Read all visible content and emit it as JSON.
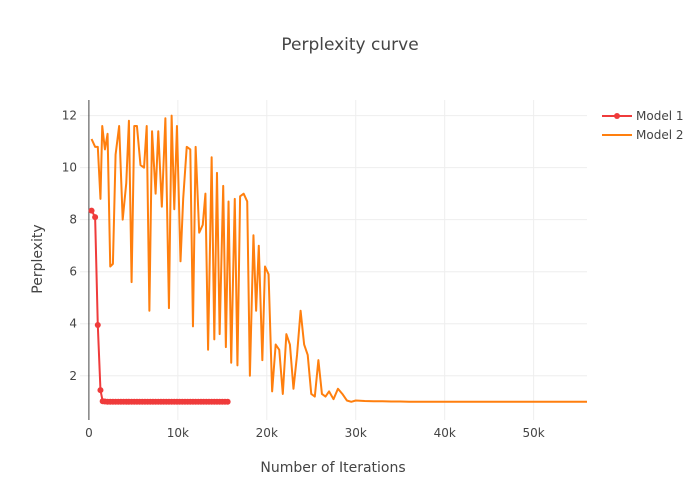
{
  "chart_data": {
    "type": "line",
    "title": "Perplexity curve",
    "xlabel": "Number of Iterations",
    "ylabel": "Perplexity",
    "xlim": [
      -1000,
      56000
    ],
    "ylim": [
      0.3,
      12.6
    ],
    "x_ticks": [
      0,
      10000,
      20000,
      30000,
      40000,
      50000
    ],
    "x_tick_labels": [
      "0",
      "10k",
      "20k",
      "30k",
      "40k",
      "50k"
    ],
    "y_ticks": [
      2,
      4,
      6,
      8,
      10,
      12
    ],
    "y_tick_labels": [
      "2",
      "4",
      "6",
      "8",
      "10",
      "12"
    ],
    "grid": true,
    "legend_position": "top-right",
    "series": [
      {
        "name": "Model 1",
        "color": "#ef3b3b",
        "mode": "lines+markers",
        "x": [
          300,
          700,
          1000,
          1300,
          1550,
          1800,
          2100,
          2400,
          2700,
          3000,
          3300,
          3600,
          3900,
          4200,
          4500,
          4800,
          5100,
          5400,
          5700,
          6000,
          6300,
          6600,
          6900,
          7200,
          7500,
          7800,
          8100,
          8400,
          8700,
          9000,
          9300,
          9600,
          9900,
          10200,
          10500,
          10800,
          11100,
          11400,
          11700,
          12000,
          12300,
          12600,
          12900,
          13200,
          13500,
          13800,
          14100,
          14400,
          14700,
          15000,
          15300,
          15600
        ],
        "y": [
          8.35,
          8.1,
          3.95,
          1.45,
          1.02,
          1.01,
          1.0,
          1.0,
          1.0,
          1.0,
          1.0,
          1.0,
          1.0,
          1.0,
          1.0,
          1.0,
          1.0,
          1.0,
          1.0,
          1.0,
          1.0,
          1.0,
          1.0,
          1.0,
          1.0,
          1.0,
          1.0,
          1.0,
          1.0,
          1.0,
          1.0,
          1.0,
          1.0,
          1.0,
          1.0,
          1.0,
          1.0,
          1.0,
          1.0,
          1.0,
          1.0,
          1.0,
          1.0,
          1.0,
          1.0,
          1.0,
          1.0,
          1.0,
          1.0,
          1.0,
          1.0,
          1.0
        ]
      },
      {
        "name": "Model 2",
        "color": "#ff7f0e",
        "mode": "lines",
        "x": [
          300,
          700,
          1000,
          1300,
          1500,
          1800,
          2100,
          2400,
          2700,
          3000,
          3400,
          3800,
          4200,
          4500,
          4800,
          5100,
          5400,
          5800,
          6200,
          6500,
          6800,
          7100,
          7500,
          7800,
          8200,
          8600,
          9000,
          9300,
          9600,
          9900,
          10300,
          10600,
          11000,
          11400,
          11700,
          12000,
          12400,
          12800,
          13100,
          13400,
          13800,
          14100,
          14400,
          14700,
          15100,
          15400,
          15700,
          16000,
          16400,
          16700,
          17000,
          17400,
          17800,
          18100,
          18500,
          18800,
          19100,
          19500,
          19800,
          20200,
          20600,
          21000,
          21400,
          21800,
          22200,
          22600,
          23000,
          23400,
          23800,
          24200,
          24600,
          25000,
          25400,
          25800,
          26200,
          26600,
          27000,
          27500,
          28000,
          28500,
          29000,
          29500,
          30000,
          31000,
          32000,
          33000,
          34000,
          35000,
          36000,
          37000,
          38000,
          39000,
          40000,
          41000,
          42000,
          43000,
          44000,
          45000,
          46000,
          47000,
          48000,
          49000,
          50000,
          51000,
          52000,
          53000,
          54000,
          55000,
          56000
        ],
        "y": [
          11.1,
          10.8,
          10.8,
          8.8,
          11.6,
          10.7,
          11.3,
          6.2,
          6.3,
          10.5,
          11.6,
          8.0,
          9.4,
          11.8,
          5.6,
          11.6,
          11.6,
          10.1,
          10.0,
          11.6,
          4.5,
          11.4,
          9.0,
          11.4,
          8.5,
          11.9,
          4.6,
          12.0,
          8.4,
          11.6,
          6.4,
          8.8,
          10.8,
          10.7,
          3.9,
          10.8,
          7.5,
          7.8,
          9.0,
          3.0,
          10.4,
          3.4,
          9.8,
          3.6,
          9.3,
          3.1,
          8.7,
          2.5,
          8.8,
          2.4,
          8.9,
          9.0,
          8.7,
          2.0,
          7.4,
          4.5,
          7.0,
          2.6,
          6.2,
          5.9,
          1.4,
          3.2,
          3.0,
          1.3,
          3.6,
          3.2,
          1.5,
          2.8,
          4.5,
          3.2,
          2.8,
          1.3,
          1.2,
          2.6,
          1.3,
          1.2,
          1.4,
          1.1,
          1.5,
          1.3,
          1.05,
          1.0,
          1.05,
          1.03,
          1.02,
          1.02,
          1.01,
          1.01,
          1.0,
          1.0,
          1.0,
          1.0,
          1.0,
          1.0,
          1.0,
          1.0,
          1.0,
          1.0,
          1.0,
          1.0,
          1.0,
          1.0,
          1.0,
          1.0,
          1.0,
          1.0,
          1.0,
          1.0,
          1.0
        ]
      }
    ]
  }
}
